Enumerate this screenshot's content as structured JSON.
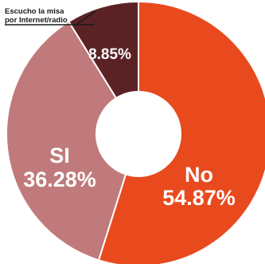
{
  "chart_data": {
    "type": "pie",
    "style": "donut",
    "slices": [
      {
        "label": "No",
        "value": 54.87,
        "display": "54.87%",
        "color": "#e84a1e"
      },
      {
        "label": "SI",
        "value": 36.28,
        "display": "36.28%",
        "color": "#c07a7b"
      },
      {
        "label": "",
        "value": 8.85,
        "display": "8.85%",
        "color": "#5b2226"
      }
    ],
    "callout": {
      "line1": "Escucho la misa",
      "line2": "por Internet/radio"
    }
  }
}
